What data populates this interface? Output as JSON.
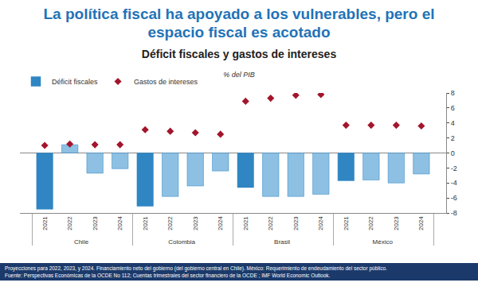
{
  "header": {
    "title": "La política fiscal ha apoyado a los vulnerables, pero el espacio fiscal es acotado"
  },
  "footnotes": [
    "Proyecciones para 2022, 2023, y 2024. Financiamiento neto del gobierno (del gobierno central en Chile). México: Requerimiento de endeudamiento del sector público.",
    "Fuente: Perspectivas Económicas de la OCDE No 112; Cuentas trimestrales del sector financiero de la OCDE ; IMF World Economic Outlook."
  ],
  "chart_data": {
    "type": "bar",
    "title": "Déficit fiscales y gastos de intereses",
    "subtitle": "% del PIB",
    "group_labels": [
      "Chile",
      "Colombia",
      "Brasil",
      "México"
    ],
    "categories": [
      "2021",
      "2022",
      "2023",
      "2024",
      "2021",
      "2022",
      "2023",
      "2024",
      "2021",
      "2022",
      "2023",
      "2024",
      "2021",
      "2022",
      "2023",
      "2024"
    ],
    "series": [
      {
        "name": "Déficit fiscales",
        "type": "bar",
        "colors": [
          "#2f86c3",
          "#8dc0e2",
          "#8dc0e2",
          "#8dc0e2",
          "#2f86c3",
          "#8dc0e2",
          "#8dc0e2",
          "#8dc0e2",
          "#2f86c3",
          "#8dc0e2",
          "#8dc0e2",
          "#8dc0e2",
          "#2f86c3",
          "#8dc0e2",
          "#8dc0e2",
          "#8dc0e2"
        ],
        "values": [
          -7.5,
          1.1,
          -2.7,
          -2.1,
          -7.1,
          -5.8,
          -4.4,
          -2.4,
          -4.6,
          -5.8,
          -5.8,
          -5.5,
          -3.7,
          -3.6,
          -4.0,
          -2.8
        ]
      },
      {
        "name": "Gastos de intereses",
        "type": "scatter",
        "marker": "diamond",
        "color": "#a3152b",
        "values": [
          1.0,
          1.2,
          1.1,
          1.1,
          3.1,
          2.9,
          2.7,
          2.5,
          6.9,
          7.3,
          7.7,
          7.8,
          3.7,
          3.7,
          3.7,
          3.6
        ]
      }
    ],
    "ylim": [
      -8,
      8
    ],
    "yticks": [
      -8,
      -6,
      -4,
      -2,
      0,
      2,
      4,
      6,
      8
    ],
    "grid": false,
    "legend": "top left"
  }
}
